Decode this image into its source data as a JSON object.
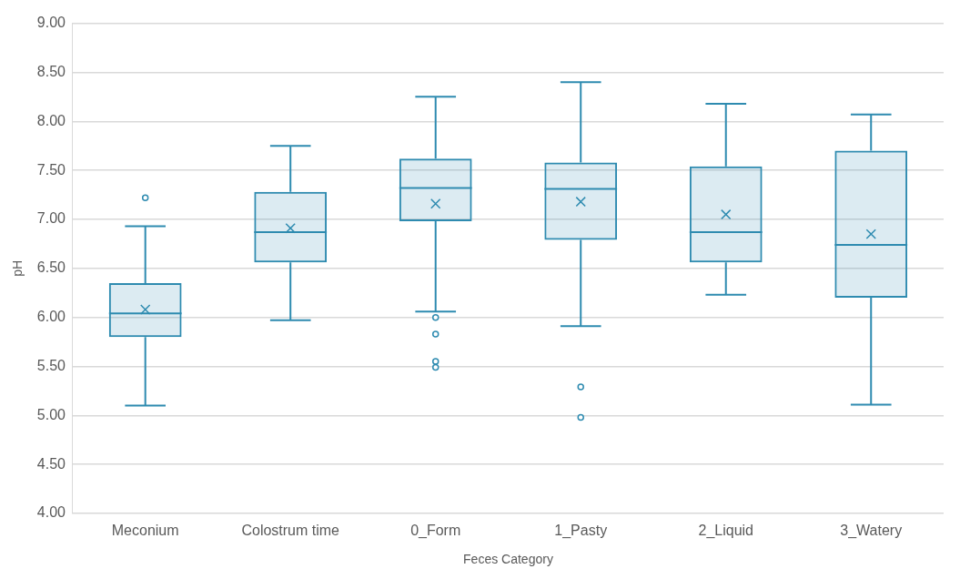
{
  "chart_data": {
    "type": "box",
    "xlabel": "Feces Category",
    "ylabel": "pH",
    "color": "#2e8bb0",
    "grid": "y",
    "categories": [
      "Meconium",
      "Colostrum time",
      "0_Form",
      "1_Pasty",
      "2_Liquid",
      "3_Watery"
    ],
    "ylim": [
      4,
      9
    ],
    "yticks": [
      {
        "value": 4,
        "label": "4.00"
      },
      {
        "value": 4.5,
        "label": "4.50"
      },
      {
        "value": 5,
        "label": "5.00"
      },
      {
        "value": 5.5,
        "label": "5.50"
      },
      {
        "value": 6,
        "label": "6.00"
      },
      {
        "value": 6.5,
        "label": "6.50"
      },
      {
        "value": 7,
        "label": "7.00"
      },
      {
        "value": 7.5,
        "label": "7.50"
      },
      {
        "value": 8,
        "label": "8.00"
      },
      {
        "value": 8.5,
        "label": "8.50"
      },
      {
        "value": 9,
        "label": "9.00"
      }
    ],
    "boxes": [
      {
        "low": 5.1,
        "q1": 5.8,
        "median": 6.04,
        "q3": 6.35,
        "high": 6.93,
        "mean": 6.08,
        "outliers": [
          7.22
        ]
      },
      {
        "low": 5.97,
        "q1": 6.56,
        "median": 6.87,
        "q3": 7.28,
        "high": 7.75,
        "mean": 6.91
      },
      {
        "low": 6.06,
        "q1": 6.98,
        "median": 7.32,
        "q3": 7.62,
        "high": 8.25,
        "mean": 7.16,
        "outliers": [
          6.0,
          5.83,
          5.55,
          5.49
        ]
      },
      {
        "low": 5.91,
        "q1": 6.79,
        "median": 7.31,
        "q3": 7.58,
        "high": 8.4,
        "mean": 7.18,
        "outliers": [
          5.29,
          4.98
        ]
      },
      {
        "low": 6.23,
        "q1": 6.56,
        "median": 6.87,
        "q3": 7.54,
        "high": 8.18,
        "mean": 7.05
      },
      {
        "low": 5.11,
        "q1": 6.2,
        "median": 6.74,
        "q3": 7.7,
        "high": 8.07,
        "mean": 6.85
      }
    ]
  }
}
